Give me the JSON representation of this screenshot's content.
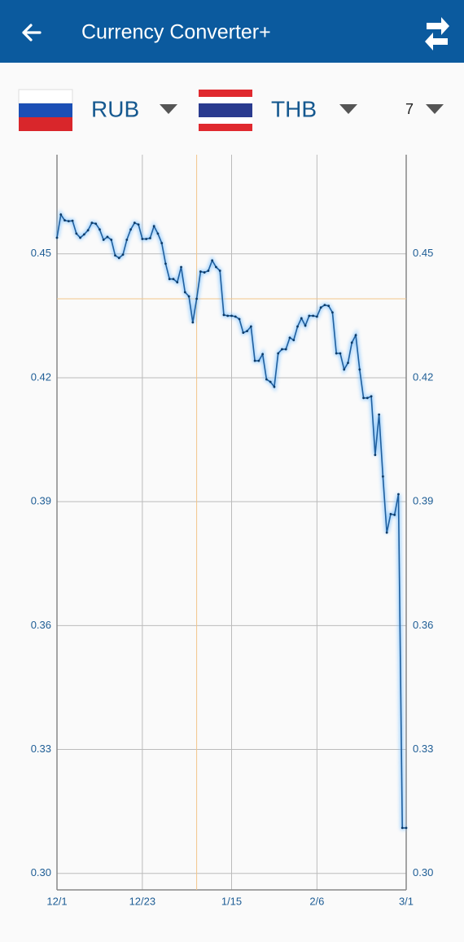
{
  "header": {
    "title": "Currency Converter+"
  },
  "selector": {
    "from": "RUB",
    "to": "THB",
    "period": "7"
  },
  "chart_data": {
    "type": "line",
    "color": "#1f5f9e",
    "grid": true,
    "highlight_x": "1/6",
    "x": [
      "12/1",
      "12/2",
      "12/3",
      "12/4",
      "12/5",
      "12/6",
      "12/7",
      "12/8",
      "12/9",
      "12/10",
      "12/11",
      "12/12",
      "12/13",
      "12/14",
      "12/15",
      "12/16",
      "12/17",
      "12/18",
      "12/19",
      "12/20",
      "12/21",
      "12/22",
      "12/23",
      "12/24",
      "12/25",
      "12/26",
      "12/27",
      "12/28",
      "12/29",
      "12/30",
      "12/31",
      "1/1",
      "1/2",
      "1/3",
      "1/4",
      "1/5",
      "1/6",
      "1/7",
      "1/8",
      "1/9",
      "1/10",
      "1/11",
      "1/12",
      "1/13",
      "1/14",
      "1/15",
      "1/16",
      "1/17",
      "1/18",
      "1/19",
      "1/20",
      "1/21",
      "1/22",
      "1/23",
      "1/24",
      "1/25",
      "1/26",
      "1/27",
      "1/28",
      "1/29",
      "1/30",
      "1/31",
      "2/1",
      "2/2",
      "2/3",
      "2/4",
      "2/5",
      "2/6",
      "2/7",
      "2/8",
      "2/9",
      "2/10",
      "2/11",
      "2/12",
      "2/13",
      "2/14",
      "2/15",
      "2/16",
      "2/17",
      "2/18",
      "2/19",
      "2/20",
      "2/21",
      "2/22",
      "2/23",
      "2/24",
      "2/25",
      "2/26",
      "2/27",
      "2/28",
      "3/1"
    ],
    "values": [
      0.4539,
      0.4595,
      0.4581,
      0.4579,
      0.458,
      0.4549,
      0.4539,
      0.4547,
      0.4557,
      0.4575,
      0.4573,
      0.4559,
      0.4534,
      0.4541,
      0.4534,
      0.4496,
      0.449,
      0.4498,
      0.4534,
      0.4559,
      0.4575,
      0.4571,
      0.4536,
      0.4536,
      0.4538,
      0.4567,
      0.4549,
      0.4526,
      0.4476,
      0.4439,
      0.4439,
      0.4431,
      0.4468,
      0.4407,
      0.4397,
      0.4334,
      0.4391,
      0.4457,
      0.4455,
      0.4459,
      0.4484,
      0.4468,
      0.4459,
      0.4352,
      0.435,
      0.435,
      0.4348,
      0.4342,
      0.4309,
      0.4313,
      0.4324,
      0.4241,
      0.4241,
      0.4257,
      0.4196,
      0.419,
      0.4178,
      0.4259,
      0.4269,
      0.4269,
      0.4297,
      0.4291,
      0.4324,
      0.4344,
      0.4326,
      0.435,
      0.435,
      0.4348,
      0.437,
      0.4376,
      0.4374,
      0.4358,
      0.4259,
      0.4259,
      0.422,
      0.4236,
      0.4285,
      0.4303,
      0.422,
      0.4151,
      0.4151,
      0.4155,
      0.4013,
      0.4111,
      0.3961,
      0.3825,
      0.387,
      0.3868,
      0.3918,
      0.311,
      0.311
    ],
    "xticks": [
      "12/1",
      "12/23",
      "1/15",
      "2/6",
      "3/1"
    ],
    "ylim": [
      0.296,
      0.474
    ],
    "yticks": [
      {
        "value": 0.3,
        "label": "0.30"
      },
      0.33,
      0.36,
      0.39,
      0.42,
      0.45
    ]
  }
}
